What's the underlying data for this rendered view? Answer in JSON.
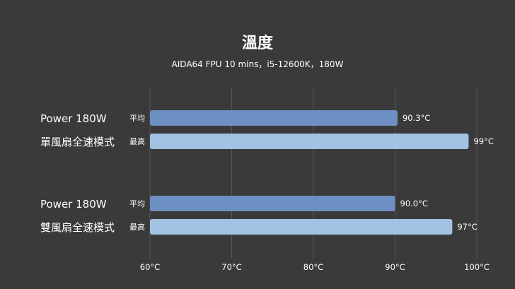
{
  "chart_data": {
    "type": "bar",
    "orientation": "horizontal",
    "title": "溫度",
    "subtitle": "AIDA64 FPU 10 mins，i5-12600K，180W",
    "groups": [
      {
        "label_line1": "Power 180W",
        "label_line2": "單風扇全速模式",
        "bars": [
          {
            "series": "平均",
            "value": 90.3,
            "label": "90.3°C"
          },
          {
            "series": "最高",
            "value": 99,
            "label": "99°C"
          }
        ]
      },
      {
        "label_line1": "Power 180W",
        "label_line2": "雙風扇全速模式",
        "bars": [
          {
            "series": "平均",
            "value": 90.0,
            "label": "90.0°C"
          },
          {
            "series": "最高",
            "value": 97,
            "label": "97°C"
          }
        ]
      }
    ],
    "xlim": [
      60,
      100
    ],
    "xticks": [
      {
        "value": 60,
        "label": "60°C"
      },
      {
        "value": 70,
        "label": "70°C"
      },
      {
        "value": 80,
        "label": "80°C"
      },
      {
        "value": 90,
        "label": "90°C"
      },
      {
        "value": 100,
        "label": "100°C"
      }
    ],
    "grid": true,
    "colors": {
      "平均": "#6e8fc4",
      "最高": "#a3c2e2"
    }
  }
}
